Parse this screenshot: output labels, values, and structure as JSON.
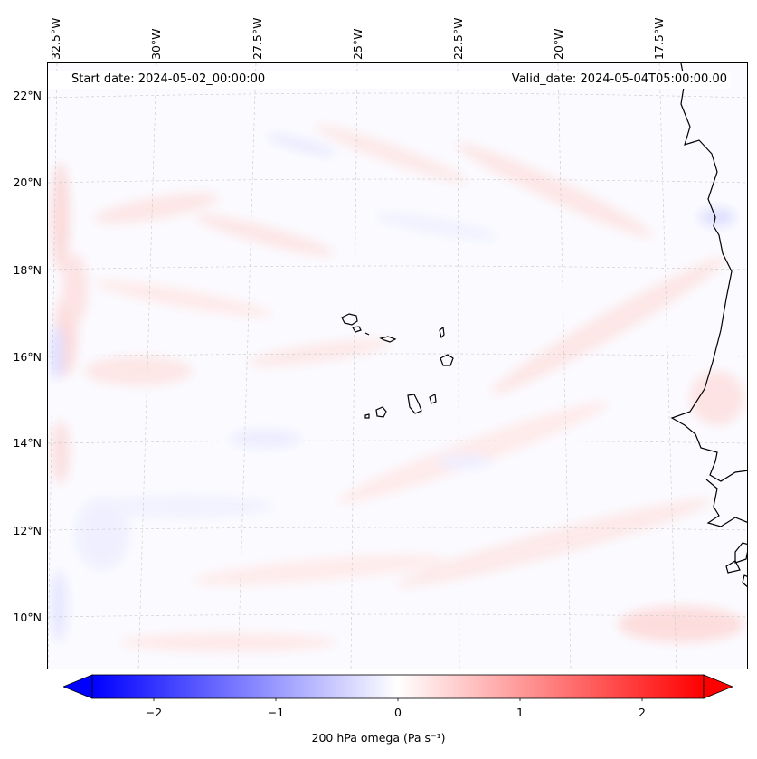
{
  "header": {
    "start_date": "Start date: 2024-05-02_00:00:00",
    "valid_date": "Valid_date: 2024-05-04T05:00:00.00"
  },
  "lon_ticks": [
    "32.5°W",
    "30°W",
    "27.5°W",
    "25°W",
    "22.5°W",
    "20°W",
    "17.5°W"
  ],
  "lat_ticks": [
    "22°N",
    "20°N",
    "18°N",
    "16°N",
    "14°N",
    "12°N",
    "10°N"
  ],
  "colorbar": {
    "label": "200 hPa omega (Pa s⁻¹)",
    "ticks": [
      "−2",
      "−1",
      "0",
      "1",
      "2"
    ],
    "range": [
      -2.6,
      2.6
    ],
    "colormap": "bwr",
    "extend": "both",
    "low_color": "#0000ff",
    "mid_color": "#ffffff",
    "high_color": "#ff0000"
  },
  "map": {
    "variable": "200 hPa omega",
    "features": [
      "Cape Verde islands",
      "West African coastline"
    ],
    "gridlines": true,
    "gridline_color": "#c8c8c8"
  }
}
